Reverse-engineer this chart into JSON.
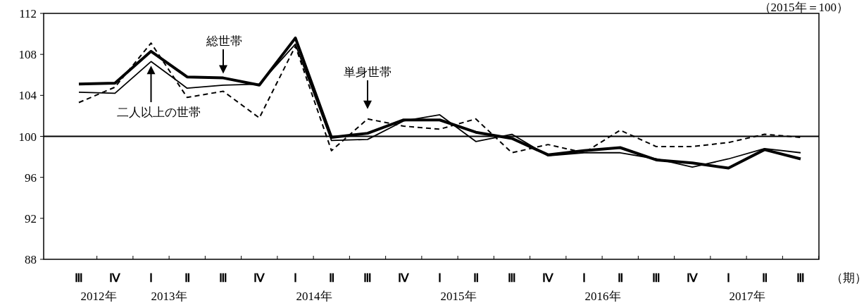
{
  "chart_data": {
    "type": "line",
    "categories": [
      "Ⅲ",
      "Ⅳ",
      "Ⅰ",
      "Ⅱ",
      "Ⅲ",
      "Ⅳ",
      "Ⅰ",
      "Ⅱ",
      "Ⅲ",
      "Ⅳ",
      "Ⅰ",
      "Ⅱ",
      "Ⅲ",
      "Ⅳ",
      "Ⅰ",
      "Ⅱ",
      "Ⅲ",
      "Ⅳ",
      "Ⅰ",
      "Ⅱ",
      "Ⅲ"
    ],
    "xlabel": "（期）",
    "ylim": [
      88,
      112
    ],
    "yticks": [
      88,
      92,
      96,
      100,
      104,
      108,
      112
    ],
    "grid": false,
    "marker": "none",
    "series": [
      {
        "name": "総世帯",
        "color": "#000000",
        "line_style": "solid",
        "values": [
          105.1,
          105.2,
          108.3,
          105.8,
          105.7,
          105.0,
          109.6,
          99.9,
          100.3,
          101.6,
          101.6,
          100.4,
          99.8,
          98.2,
          98.6,
          98.9,
          97.7,
          97.4,
          96.9,
          98.7,
          97.8
        ]
      },
      {
        "name": "二人以上の世帯",
        "color": "#000000",
        "line_style": "solid",
        "values": [
          104.3,
          104.2,
          107.3,
          104.7,
          105.0,
          105.1,
          109.0,
          99.6,
          99.7,
          101.5,
          102.1,
          99.5,
          100.2,
          98.1,
          98.4,
          98.4,
          97.8,
          97.0,
          97.8,
          98.8,
          98.4
        ]
      },
      {
        "name": "単身世帯",
        "color": "#000000",
        "line_style": "dashed",
        "values": [
          103.3,
          104.8,
          109.1,
          103.8,
          104.4,
          101.8,
          108.8,
          98.6,
          101.7,
          101.0,
          100.7,
          101.7,
          98.4,
          99.2,
          98.4,
          100.6,
          99.0,
          99.0,
          99.4,
          100.2,
          99.9
        ]
      }
    ],
    "ref_lines": [
      {
        "axis": "y",
        "value": 100,
        "color": "#000000",
        "line_style": "solid"
      }
    ],
    "annotations": [
      "（2015年＝100）",
      "2012年",
      "2013年",
      "2014年",
      "2015年",
      "2016年",
      "2017年"
    ]
  }
}
